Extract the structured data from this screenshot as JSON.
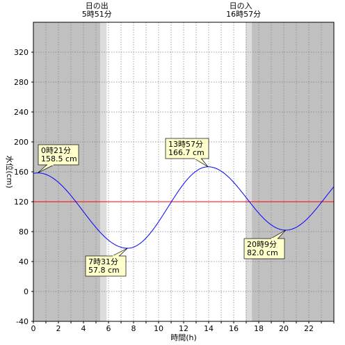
{
  "chart_data": {
    "type": "line",
    "xlabel": "時間(h)",
    "ylabel": "水位(cm)",
    "xlim": [
      0,
      24
    ],
    "ylim": [
      -40,
      360
    ],
    "x_ticks": [
      0,
      2,
      4,
      6,
      8,
      10,
      12,
      14,
      16,
      18,
      20,
      22
    ],
    "x_tick_labels": [
      "0",
      "2",
      "4",
      "6",
      "8",
      "10",
      "12",
      "14",
      "16",
      "18",
      "20",
      "22"
    ],
    "y_ticks": [
      -40,
      0,
      40,
      80,
      120,
      160,
      200,
      240,
      280,
      320
    ],
    "y_tick_labels": [
      "-40",
      "0",
      "40",
      "80",
      "120",
      "160",
      "200",
      "240",
      "280",
      "320"
    ],
    "grid": true,
    "reference_line": {
      "value": 120,
      "color": "#ff0000"
    },
    "series": [
      {
        "color": "#0000ff",
        "extrema": [
          {
            "x": 0.35,
            "y": 158.5,
            "label": "0時21分\n158.5 cm"
          },
          {
            "x": 7.5167,
            "y": 57.8,
            "label": "7時31分\n57.8 cm"
          },
          {
            "x": 13.95,
            "y": 166.7,
            "label": "13時57分\n166.7 cm"
          },
          {
            "x": 20.15,
            "y": 82.0,
            "label": "20時9分\n82.0 cm"
          }
        ],
        "start_value": 158.0,
        "end_value": 150.0
      }
    ],
    "sunrise": {
      "time": 5.85,
      "label_line1": "日の出",
      "label_line2": "5時51分"
    },
    "sunset": {
      "time": 16.95,
      "label_line1": "日の入",
      "label_line2": "16時57分"
    },
    "night_color": "#c0c0c0",
    "twilight_color": "#dcdcdc"
  }
}
